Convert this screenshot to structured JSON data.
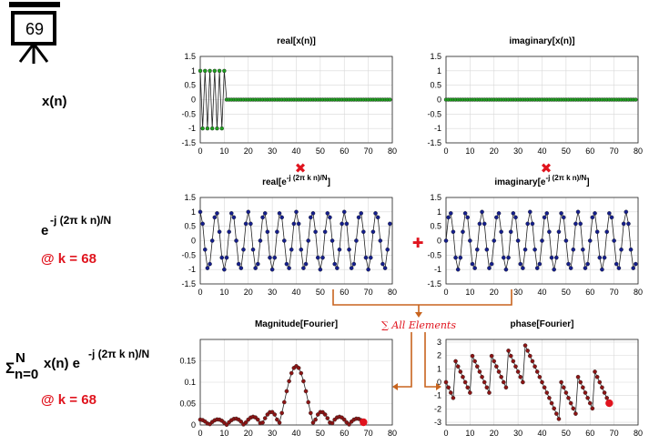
{
  "slide_number": "69",
  "left_labels": {
    "xn": "x(n)",
    "exp_base": "e",
    "exp_sup": "-j (2π k n)/N",
    "k_label": "@ k = 68",
    "sum_sigma": "Σ",
    "sum_top": "N",
    "sum_bottom": "n=0",
    "sum_term": "x(n) e",
    "sum_sup": "-j (2π k n)/N",
    "k_label2": "@ k = 68"
  },
  "operators": {
    "multiply": "✖",
    "add": "✚",
    "sum_annotation": "∑ All Elements"
  },
  "colors": {
    "accent_red": "#e0141e",
    "arrow_orange": "#c8641e",
    "green_marker": "#1ea01e",
    "blue_marker": "#141e8c",
    "dark_red_marker": "#8c1414"
  },
  "chart_data": [
    {
      "id": "real_x",
      "type": "line",
      "title": "real[x(n)]",
      "xlim": [
        0,
        80
      ],
      "ylim": [
        -1.5,
        1.5
      ],
      "xticks": [
        0,
        10,
        20,
        30,
        40,
        50,
        60,
        70,
        80
      ],
      "yticks": [
        -1.5,
        -1,
        -0.5,
        0,
        0.5,
        1,
        1.5
      ],
      "yticklabels": [
        "-1.5",
        "-1",
        "-0.5",
        "0",
        "0.5",
        "1",
        "1.5"
      ],
      "N": 80,
      "values": [
        1,
        -1,
        1,
        -1,
        1,
        -1,
        1,
        -1,
        1,
        -1,
        1,
        0,
        0,
        0,
        0,
        0,
        0,
        0,
        0,
        0,
        0,
        0,
        0,
        0,
        0,
        0,
        0,
        0,
        0,
        0,
        0,
        0,
        0,
        0,
        0,
        0,
        0,
        0,
        0,
        0,
        0,
        0,
        0,
        0,
        0,
        0,
        0,
        0,
        0,
        0,
        0,
        0,
        0,
        0,
        0,
        0,
        0,
        0,
        0,
        0,
        0,
        0,
        0,
        0,
        0,
        0,
        0,
        0,
        0,
        0,
        0,
        0,
        0,
        0,
        0,
        0,
        0,
        0,
        0,
        0
      ],
      "marker": "green"
    },
    {
      "id": "imag_x",
      "type": "line",
      "title": "imaginary[x(n)]",
      "xlim": [
        0,
        80
      ],
      "ylim": [
        -1.5,
        1.5
      ],
      "xticks": [
        0,
        10,
        20,
        30,
        40,
        50,
        60,
        70,
        80
      ],
      "yticks": [
        -1.5,
        -1,
        -0.5,
        0,
        0.5,
        1,
        1.5
      ],
      "yticklabels": [
        "-1.5",
        "-1",
        "-0.5",
        "0",
        "0.5",
        "1",
        "1.5"
      ],
      "N": 80,
      "values": "zeros",
      "marker": "green"
    },
    {
      "id": "real_exp",
      "type": "line",
      "title_base": "real[e",
      "title_sup": "-j (2π k n)/N",
      "title_end": "]",
      "xlim": [
        0,
        80
      ],
      "ylim": [
        -1.5,
        1.5
      ],
      "xticks": [
        0,
        10,
        20,
        30,
        40,
        50,
        60,
        70,
        80
      ],
      "yticks": [
        -1.5,
        -1,
        -0.5,
        0,
        0.5,
        1,
        1.5
      ],
      "yticklabels": [
        "-1.5",
        "-1",
        "-0.5",
        "0",
        "0.5",
        "1",
        "1.5"
      ],
      "N": 80,
      "k": 68,
      "function": "cos",
      "marker": "blue"
    },
    {
      "id": "imag_exp",
      "type": "line",
      "title_base": "imaginary[e",
      "title_sup": "-j (2π k n)/N",
      "title_end": "]",
      "xlim": [
        0,
        80
      ],
      "ylim": [
        -1.5,
        1.5
      ],
      "xticks": [
        0,
        10,
        20,
        30,
        40,
        50,
        60,
        70,
        80
      ],
      "yticks": [
        -1.5,
        -1,
        -0.5,
        0,
        0.5,
        1,
        1.5
      ],
      "yticklabels": [
        "-1.5",
        "-1",
        "-0.5",
        "0",
        "0.5",
        "1",
        "1.5"
      ],
      "N": 80,
      "k": 68,
      "function": "-sin",
      "marker": "blue"
    },
    {
      "id": "magnitude",
      "type": "line",
      "title": "Magnitude[Fourier]",
      "xlim": [
        0,
        80
      ],
      "ylim": [
        0,
        0.2
      ],
      "xticks": [
        0,
        10,
        20,
        30,
        40,
        50,
        60,
        70,
        80
      ],
      "yticks": [
        0,
        0.05,
        0.1,
        0.15
      ],
      "yticklabels": [
        "0",
        "0.05",
        "0.1",
        "0.15"
      ],
      "N": 80,
      "L": 10,
      "shown_upto": 68,
      "function": "dtft_mag",
      "highlight_k": 68,
      "marker": "darkred"
    },
    {
      "id": "phase",
      "type": "line",
      "title": "phase[Fourier]",
      "xlim": [
        0,
        80
      ],
      "ylim": [
        -3.2,
        3.2
      ],
      "xticks": [
        0,
        10,
        20,
        30,
        40,
        50,
        60,
        70,
        80
      ],
      "yticks": [
        -3,
        -2,
        -1,
        0,
        1,
        2,
        3
      ],
      "yticklabels": [
        "-3",
        "-2",
        "-1",
        "0",
        "1",
        "2",
        "3"
      ],
      "N": 80,
      "L": 10,
      "shown_upto": 68,
      "function": "dtft_phase",
      "highlight_k": 68,
      "marker": "darkred"
    }
  ]
}
